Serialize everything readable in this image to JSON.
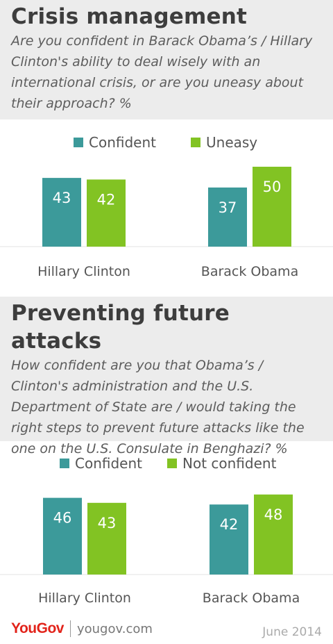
{
  "colors": {
    "confident": "#3c9a9a",
    "uneasy": "#82c323",
    "header_bg": "#ececec"
  },
  "charts": [
    {
      "title": "Crisis management",
      "question": "Are you confident in Barack Obama’s / Hillary Clinton's ability to deal wisely with an international crisis, or are you uneasy about their approach? %"
    },
    {
      "title": "Preventing future attacks",
      "question": "How confident are you that Obama’s / Clinton's administration and the U.S. Department of State are / would taking the right steps to prevent future attacks like the one on the U.S. Consulate in Benghazi? %"
    }
  ],
  "chart_data": [
    {
      "type": "bar",
      "categories": [
        "Hillary Clinton",
        "Barack Obama"
      ],
      "series": [
        {
          "name": "Confident",
          "values": [
            43,
            37
          ]
        },
        {
          "name": "Uneasy",
          "values": [
            42,
            50
          ]
        }
      ],
      "ylim": [
        0,
        50
      ]
    },
    {
      "type": "bar",
      "categories": [
        "Hillary Clinton",
        "Barack Obama"
      ],
      "series": [
        {
          "name": "Confident",
          "values": [
            46,
            42
          ]
        },
        {
          "name": "Not confident",
          "values": [
            43,
            48
          ]
        }
      ],
      "ylim": [
        0,
        50
      ]
    }
  ],
  "footer": {
    "logo": "YouGov",
    "site": "yougov.com",
    "date": "June 2014"
  }
}
